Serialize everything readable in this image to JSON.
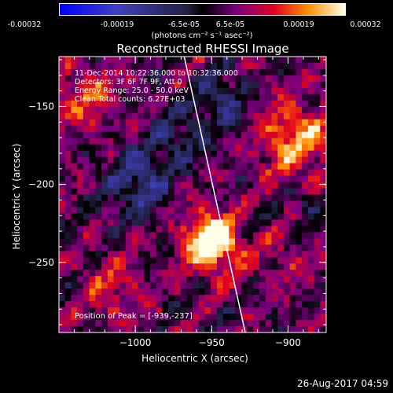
{
  "colorbar": {
    "ticks": [
      "-0.00032",
      "-0.00019",
      "-6.5e-05",
      "6.5e-05",
      "0.00019",
      "0.00032"
    ],
    "label": "(photons cm⁻² s⁻¹ asec⁻²)",
    "range": [
      -0.00032,
      0.00032
    ]
  },
  "chart_data": {
    "type": "heatmap",
    "title": "Reconstructed RHESSI Image",
    "xlabel": "Heliocentric X (arcsec)",
    "ylabel": "Heliocentric Y (arcsec)",
    "xlim": [
      -1050,
      -875
    ],
    "ylim": [
      -295,
      -118
    ],
    "x_ticks": [
      {
        "value": -1000,
        "label": "−1000"
      },
      {
        "value": -950,
        "label": "−950"
      },
      {
        "value": -900,
        "label": "−900"
      }
    ],
    "y_ticks": [
      {
        "value": -150,
        "label": "−150"
      },
      {
        "value": -200,
        "label": "−200"
      },
      {
        "value": -250,
        "label": "−250"
      }
    ],
    "peak": {
      "x": -939,
      "y": -237
    },
    "limb_line": [
      [
        -968,
        -118
      ],
      [
        -928,
        -295
      ]
    ],
    "annotations": [
      "11-Dec-2014 10:22:36.000 to 10:32:36.000",
      "Detectors: 3F 6F 7F 9F, Att 0",
      "Energy Range: 25.0 - 50.0 keV",
      "Clean     Total counts: 6.27E+03"
    ],
    "peak_label": "Position of Peak = [-939,-237]"
  },
  "timestamp": "26-Aug-2017 04:59",
  "colors": {
    "background": "#000000",
    "foreground": "#ffffff"
  }
}
